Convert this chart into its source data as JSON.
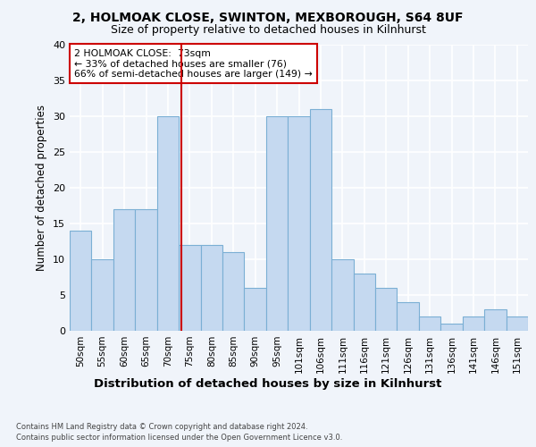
{
  "title1": "2, HOLMOAK CLOSE, SWINTON, MEXBOROUGH, S64 8UF",
  "title2": "Size of property relative to detached houses in Kilnhurst",
  "xlabel": "Distribution of detached houses by size in Kilnhurst",
  "ylabel": "Number of detached properties",
  "categories": [
    "50sqm",
    "55sqm",
    "60sqm",
    "65sqm",
    "70sqm",
    "75sqm",
    "80sqm",
    "85sqm",
    "90sqm",
    "95sqm",
    "101sqm",
    "106sqm",
    "111sqm",
    "116sqm",
    "121sqm",
    "126sqm",
    "131sqm",
    "136sqm",
    "141sqm",
    "146sqm",
    "151sqm"
  ],
  "values": [
    14,
    10,
    17,
    17,
    30,
    12,
    12,
    11,
    6,
    30,
    30,
    31,
    10,
    8,
    6,
    4,
    2,
    1,
    2,
    3,
    2
  ],
  "bar_color": "#c5d9f0",
  "bar_edge_color": "#7bafd4",
  "annotation_title": "2 HOLMOAK CLOSE:  73sqm",
  "annotation_line1": "← 33% of detached houses are smaller (76)",
  "annotation_line2": "66% of semi-detached houses are larger (149) →",
  "annotation_box_color": "#ffffff",
  "annotation_box_edge": "#cc0000",
  "reference_line_color": "#cc0000",
  "ylim": [
    0,
    40
  ],
  "yticks": [
    0,
    5,
    10,
    15,
    20,
    25,
    30,
    35,
    40
  ],
  "footer1": "Contains HM Land Registry data © Crown copyright and database right 2024.",
  "footer2": "Contains public sector information licensed under the Open Government Licence v3.0.",
  "bg_color": "#f0f4fa",
  "grid_color": "#ffffff"
}
